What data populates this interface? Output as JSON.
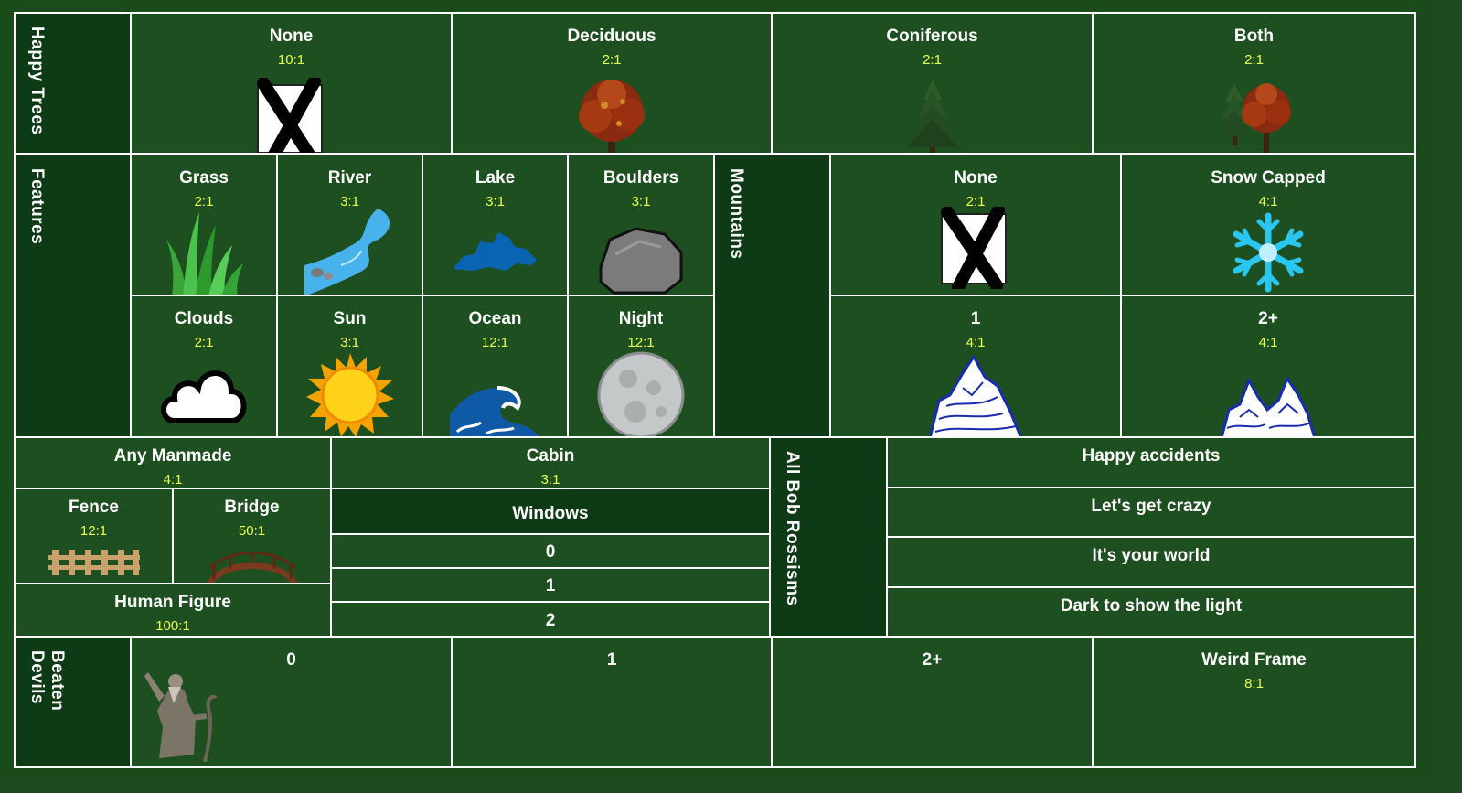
{
  "happy_trees": {
    "title": "Happy Trees",
    "items": [
      {
        "label": "None",
        "odds": "10:1"
      },
      {
        "label": "Deciduous",
        "odds": "2:1"
      },
      {
        "label": "Coniferous",
        "odds": "2:1"
      },
      {
        "label": "Both",
        "odds": "2:1"
      }
    ]
  },
  "features": {
    "title": "Features",
    "items": [
      {
        "label": "Grass",
        "odds": "2:1"
      },
      {
        "label": "River",
        "odds": "3:1"
      },
      {
        "label": "Lake",
        "odds": "3:1"
      },
      {
        "label": "Boulders",
        "odds": "3:1"
      },
      {
        "label": "Clouds",
        "odds": "2:1"
      },
      {
        "label": "Sun",
        "odds": "3:1"
      },
      {
        "label": "Ocean",
        "odds": "12:1"
      },
      {
        "label": "Night",
        "odds": "12:1"
      }
    ]
  },
  "mountains": {
    "title": "Mountains",
    "items": [
      {
        "label": "None",
        "odds": "2:1"
      },
      {
        "label": "Snow Capped",
        "odds": "4:1"
      },
      {
        "label": "1",
        "odds": "4:1"
      },
      {
        "label": "2+",
        "odds": "4:1"
      }
    ]
  },
  "manmade": {
    "any": {
      "label": "Any Manmade",
      "odds": "4:1"
    },
    "fence": {
      "label": "Fence",
      "odds": "12:1"
    },
    "bridge": {
      "label": "Bridge",
      "odds": "50:1"
    },
    "human": {
      "label": "Human Figure",
      "odds": "100:1"
    },
    "cabin": {
      "label": "Cabin",
      "odds": "3:1"
    },
    "windows": {
      "title": "Windows",
      "options": [
        "0",
        "1",
        "2"
      ]
    }
  },
  "rossisms": {
    "title": "All Bob Rossisms",
    "items": [
      "Happy accidents",
      "Let's get crazy",
      "It's your world",
      "Dark to show the light"
    ]
  },
  "beaten_devils": {
    "title": "Beaten Devils",
    "items": [
      {
        "label": "0"
      },
      {
        "label": "1"
      },
      {
        "label": "2+"
      }
    ],
    "weird_frame": {
      "label": "Weird Frame",
      "odds": "8:1"
    }
  },
  "colors": {
    "board": "#1e4f20",
    "header": "#0f3a16",
    "odds": "#e8ff52",
    "border": "#ffffff"
  }
}
